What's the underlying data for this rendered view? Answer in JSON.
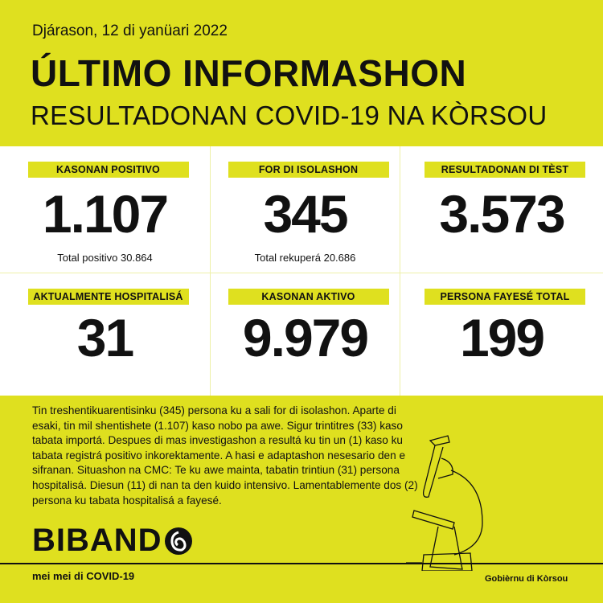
{
  "header": {
    "date": "Djárason, 12 di yanüari 2022",
    "title": "ÚLTIMO INFORMASHON",
    "subtitle": "RESULTADONAN COVID-19 NA KÒRSOU"
  },
  "stats": [
    {
      "label": "KASONAN POSITIVO",
      "value": "1.107",
      "sub": "Total positivo 30.864"
    },
    {
      "label": "FOR DI ISOLASHON",
      "value": "345",
      "sub": "Total rekuperá 20.686"
    },
    {
      "label": "RESULTADONAN DI TÈST",
      "value": "3.573",
      "sub": ""
    },
    {
      "label": "AKTUALMENTE HOSPITALISÁ",
      "value": "31"
    },
    {
      "label": "KASONAN AKTIVO",
      "value": "9.979"
    },
    {
      "label": "PERSONA FAYESÉ TOTAL",
      "value": "199"
    }
  ],
  "body": "Tin treshentikuarentisinku (345) persona ku a sali for di isolashon. Aparte di esaki, tin mil shentishete (1.107) kaso nobo pa awe. Sigur trintitres (33) kaso tabata importá. Despues di mas investigashon a resultá ku tin un (1) kaso ku tabata registrá positivo inkorektamente. A hasi e adaptashon nesesario den e sifranan. Situashon na CMC: Te ku awe mainta, tabatin trintiun (31) persona hospitalisá. Diesun (11) di nan ta den kuido intensivo. Lamentablemente dos (2) persona ku tabata hospitalisá a fayesé.",
  "footer": {
    "logo": "BIBAND",
    "tagline": "mei mei di COVID-19",
    "gov": "Gobièrnu di Kòrsou"
  },
  "colors": {
    "accent": "#dfe01f",
    "panel": "#ffffff",
    "text": "#111111"
  },
  "icons": {
    "logo_o": "swirl-circle-icon",
    "illustration": "microscope-icon"
  }
}
